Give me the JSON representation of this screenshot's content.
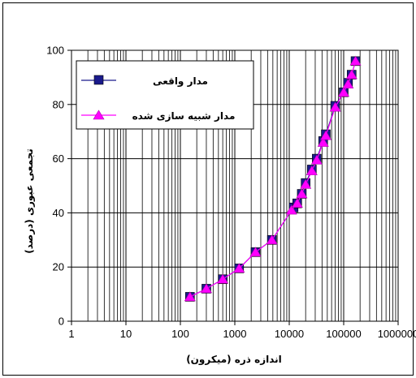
{
  "chart_data": {
    "type": "scatter",
    "xscale": "log",
    "xlim": [
      1,
      1000000
    ],
    "ylim": [
      0,
      100
    ],
    "grid": true,
    "legend_position": "top-left",
    "xlabel": "اندازه ذره (میکرون)",
    "ylabel": "تجمعی عبوری (درصد)",
    "x_ticks": [
      "1",
      "10",
      "100",
      "1000",
      "10000",
      "100000",
      "1000000"
    ],
    "y_ticks": [
      "0",
      "20",
      "40",
      "60",
      "80",
      "100"
    ],
    "series": [
      {
        "name": "مدار واقعی",
        "marker": "square",
        "color": "#1a1a8c",
        "points": [
          [
            150,
            9
          ],
          [
            300,
            12
          ],
          [
            600,
            15.5
          ],
          [
            1200,
            19.5
          ],
          [
            2400,
            25.5
          ],
          [
            4800,
            30
          ],
          [
            12000,
            42
          ],
          [
            14000,
            43.5
          ],
          [
            17000,
            47
          ],
          [
            20000,
            51
          ],
          [
            26000,
            56
          ],
          [
            32000,
            60
          ],
          [
            42000,
            66.5
          ],
          [
            47000,
            69
          ],
          [
            70000,
            79.5
          ],
          [
            100000,
            84.5
          ],
          [
            120000,
            88
          ],
          [
            140000,
            91
          ],
          [
            165000,
            96
          ]
        ]
      },
      {
        "name": "مدار شبیه سازی شده",
        "marker": "triangle",
        "color": "#ff00ff",
        "points": [
          [
            150,
            9
          ],
          [
            300,
            12
          ],
          [
            600,
            15.5
          ],
          [
            1200,
            19.5
          ],
          [
            2400,
            25.5
          ],
          [
            4800,
            30
          ],
          [
            11000,
            41
          ],
          [
            14000,
            43.5
          ],
          [
            17000,
            47
          ],
          [
            20000,
            50.5
          ],
          [
            26000,
            55.5
          ],
          [
            32000,
            59.5
          ],
          [
            42000,
            66
          ],
          [
            47000,
            68.5
          ],
          [
            70000,
            79
          ],
          [
            100000,
            84.5
          ],
          [
            120000,
            87.5
          ],
          [
            140000,
            91
          ],
          [
            165000,
            96
          ]
        ]
      }
    ]
  }
}
